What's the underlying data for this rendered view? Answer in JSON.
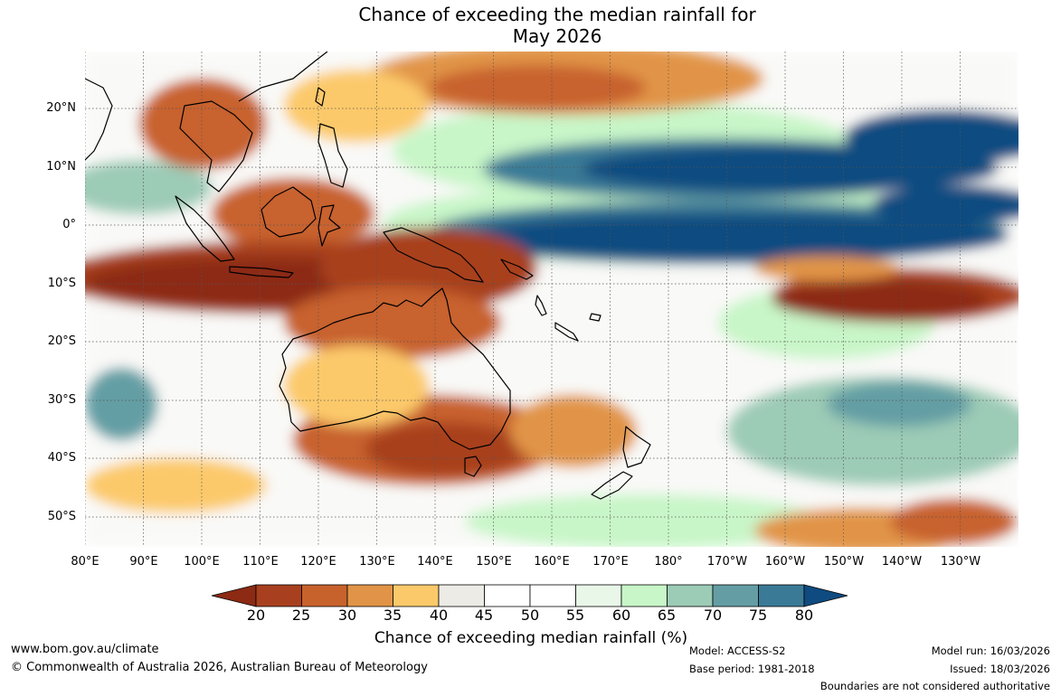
{
  "title": {
    "line1": "Chance of exceeding the median rainfall for",
    "line2": "May 2026"
  },
  "map": {
    "region": "Indo-Pacific",
    "lat_labels": [
      "20°N",
      "10°N",
      "0°",
      "10°S",
      "20°S",
      "30°S",
      "40°S",
      "50°S"
    ],
    "lon_labels": [
      "80°E",
      "90°E",
      "100°E",
      "110°E",
      "120°E",
      "130°E",
      "140°E",
      "150°E",
      "160°E",
      "170°E",
      "180°",
      "170°W",
      "160°W",
      "150°W",
      "140°W",
      "130°W"
    ],
    "colors": {
      "land_outline": "#000000",
      "grid": "#555555",
      "ocean_bg": "#ffffff"
    }
  },
  "legend": {
    "title": "Chance of exceeding median rainfall (%)",
    "ticks": [
      "20",
      "25",
      "30",
      "35",
      "40",
      "45",
      "50",
      "55",
      "60",
      "65",
      "70",
      "75",
      "80"
    ],
    "colors": [
      "#8c2a14",
      "#a8401f",
      "#c8622d",
      "#e19447",
      "#fcc96a",
      "#edebe6",
      "#ffffff",
      "#ffffff",
      "#e8f7e8",
      "#c8f6c8",
      "#9ccbb6",
      "#649ea4",
      "#3a7a96",
      "#0f4b80"
    ]
  },
  "footer": {
    "url": "www.bom.gov.au/climate",
    "copyright": "© Commonwealth of Australia 2026, Australian Bureau of Meteorology",
    "model": "Model: ACCESS-S2",
    "base_period": "Base period: 1981-2018",
    "model_run": "Model run: 16/03/2026",
    "issued": "Issued: 18/03/2026",
    "disclaimer": "Boundaries are not considered authoritative"
  }
}
